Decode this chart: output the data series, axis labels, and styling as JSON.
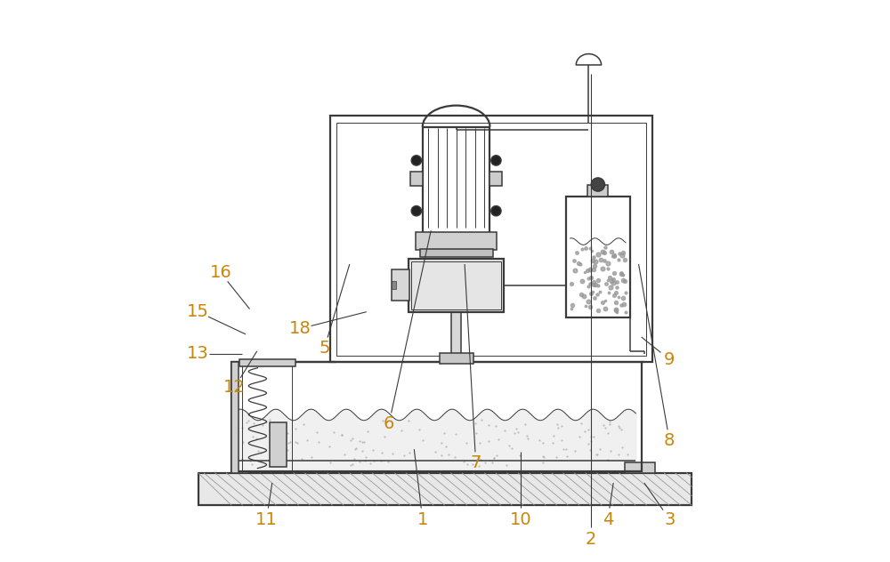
{
  "bg_color": "#ffffff",
  "line_color": "#3a3a3a",
  "label_color": "#c8860a",
  "figsize": [
    10.0,
    6.32
  ],
  "dpi": 100,
  "lw_main": 1.6,
  "lw_med": 1.1,
  "lw_thin": 0.7,
  "label_fs": 14,
  "annotations": {
    "1": [
      0.46,
      0.075,
      0.445,
      0.2
    ],
    "2": [
      0.76,
      0.04,
      0.76,
      0.87
    ],
    "3": [
      0.9,
      0.075,
      0.855,
      0.14
    ],
    "4": [
      0.79,
      0.075,
      0.8,
      0.14
    ],
    "5": [
      0.285,
      0.38,
      0.33,
      0.53
    ],
    "6": [
      0.4,
      0.245,
      0.475,
      0.59
    ],
    "7": [
      0.555,
      0.175,
      0.535,
      0.53
    ],
    "8": [
      0.9,
      0.215,
      0.845,
      0.53
    ],
    "9": [
      0.9,
      0.36,
      0.85,
      0.4
    ],
    "10": [
      0.635,
      0.075,
      0.635,
      0.195
    ],
    "11": [
      0.182,
      0.075,
      0.192,
      0.14
    ],
    "12": [
      0.125,
      0.31,
      0.165,
      0.375
    ],
    "13": [
      0.06,
      0.37,
      0.138,
      0.37
    ],
    "15": [
      0.06,
      0.445,
      0.145,
      0.405
    ],
    "16": [
      0.1,
      0.515,
      0.152,
      0.45
    ],
    "18": [
      0.242,
      0.415,
      0.36,
      0.445
    ]
  }
}
